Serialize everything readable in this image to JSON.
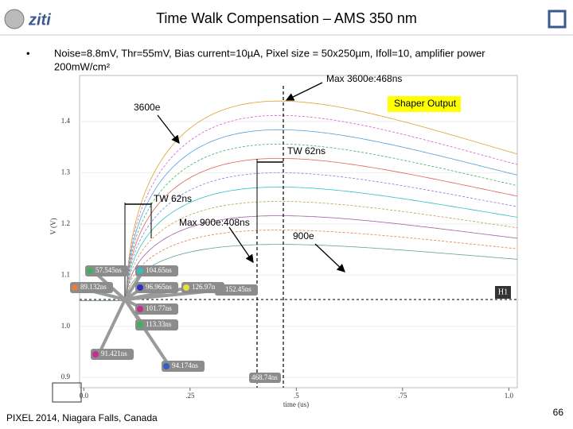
{
  "header": {
    "title": "Time Walk Compensation – AMS 350 nm"
  },
  "bullet": {
    "line1": "Noise=8.8mV, Thr=55mV, Bias current=10µA, Pixel size = 50x250µm, Ifoll=10, amplifier power",
    "line2": "200mW/cm²"
  },
  "plot": {
    "ylabel": "V (V)",
    "xlabel": "time (us)",
    "xlim": [
      -0.01,
      1.02
    ],
    "ylim": [
      0.88,
      1.49
    ],
    "xticks": [
      {
        "value": 0,
        "label": "0.0"
      },
      {
        "value": 0.25,
        "label": ".25"
      },
      {
        "value": 0.5,
        "label": ".5"
      },
      {
        "value": 0.75,
        "label": ".75"
      },
      {
        "value": 1,
        "label": "1.0"
      }
    ],
    "yticks": [
      1.4,
      1.3,
      1.2,
      1.1,
      {
        "value": 1,
        "label": "1.0"
      },
      0.9
    ],
    "annotations": {
      "max_3600": "Max 3600e:468ns",
      "shaper": "Shaper Output",
      "e3600": "3600e",
      "tw_top": "TW 62ns",
      "tw_bottom": "TW 62ns",
      "max_900": "Max 900e:408ns",
      "e900": "900e",
      "h1": "H1",
      "cursor": "468.74ns"
    },
    "markers": [
      "57.545ns",
      "104.65ns",
      "89.132ns",
      "96.965ns",
      "126.97ns",
      "152.45ns",
      "101.77ns",
      "113.33ns",
      "91.421ns",
      "94.174ns"
    ]
  },
  "footer": {
    "venue": "PIXEL 2014, Niagara Falls, Canada",
    "page": "66"
  }
}
